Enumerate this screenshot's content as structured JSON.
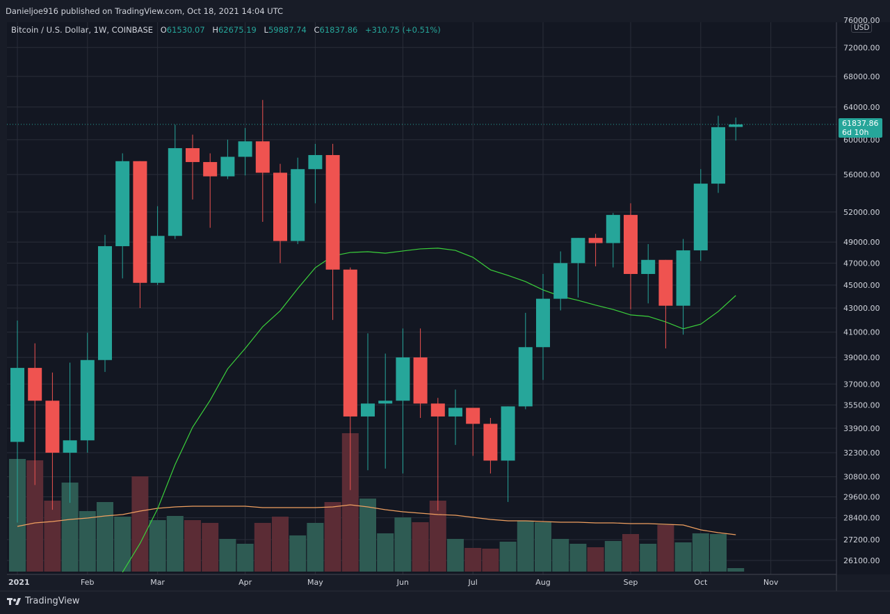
{
  "header": {
    "published": "Danieljoe916 published on TradingView.com, Oct 18, 2021 14:04 UTC"
  },
  "legend": {
    "symbol": "Bitcoin / U.S. Dollar, 1W, COINBASE",
    "o_label": "O",
    "o": "61530.07",
    "h_label": "H",
    "h": "62675.19",
    "l_label": "L",
    "l": "59887.74",
    "c_label": "C",
    "c": "61837.86",
    "change": "+310.75 (+0.51%)"
  },
  "price_axis": {
    "currency": "USD",
    "last_price": "61837.86",
    "countdown": "6d 10h"
  },
  "footer": {
    "brand": "TradingView"
  },
  "colors": {
    "up": "#26a69a",
    "down": "#ef5350",
    "vol_up": "#2e5b53",
    "vol_down": "#5b2c35",
    "ma_price": "#3bd13b",
    "ma_volume": "#f0a060",
    "background": "#131722",
    "grid": "#2a2e39"
  },
  "chart_data": {
    "type": "candlestick",
    "scale": "log",
    "grid": true,
    "ylim": [
      25500,
      77000
    ],
    "y_ticks": [
      "76000.00",
      "72000.00",
      "68000.00",
      "64000.00",
      "60000.00",
      "56000.00",
      "52000.00",
      "49000.00",
      "47000.00",
      "45000.00",
      "43000.00",
      "41000.00",
      "39000.00",
      "37000.00",
      "35500.00",
      "33900.00",
      "32300.00",
      "30800.00",
      "29600.00",
      "28400.00",
      "27200.00",
      "26100.00"
    ],
    "x_ticks": [
      {
        "label": "2021",
        "week": 0
      },
      {
        "label": "Feb",
        "week": 4
      },
      {
        "label": "Mar",
        "week": 8
      },
      {
        "label": "Apr",
        "week": 13
      },
      {
        "label": "May",
        "week": 17
      },
      {
        "label": "Jun",
        "week": 22
      },
      {
        "label": "Jul",
        "week": 26
      },
      {
        "label": "Aug",
        "week": 30
      },
      {
        "label": "Sep",
        "week": 35
      },
      {
        "label": "Oct",
        "week": 39
      },
      {
        "label": "Nov",
        "week": 43
      }
    ],
    "candles": [
      [
        33000,
        41950,
        28130,
        38200
      ],
      [
        38200,
        40100,
        30300,
        35800
      ],
      [
        35800,
        37850,
        28850,
        32300
      ],
      [
        32300,
        38600,
        29250,
        33100
      ],
      [
        33100,
        40950,
        32300,
        38800
      ],
      [
        38800,
        49700,
        37900,
        48600
      ],
      [
        48600,
        58400,
        45600,
        57500
      ],
      [
        57500,
        57500,
        43000,
        45200
      ],
      [
        45200,
        52600,
        45000,
        49600
      ],
      [
        49600,
        61800,
        49300,
        59000
      ],
      [
        59000,
        60600,
        53300,
        57400
      ],
      [
        57400,
        58400,
        50400,
        55800
      ],
      [
        55800,
        60000,
        55500,
        58000
      ],
      [
        58000,
        61400,
        55900,
        59800
      ],
      [
        59800,
        64900,
        51000,
        56200
      ],
      [
        56200,
        57200,
        47000,
        49100
      ],
      [
        49100,
        57900,
        48800,
        56600
      ],
      [
        56600,
        59500,
        52900,
        58200
      ],
      [
        58200,
        59500,
        42000,
        46400
      ],
      [
        46400,
        46600,
        30000,
        34700
      ],
      [
        34700,
        40900,
        31200,
        35600
      ],
      [
        35600,
        39300,
        31300,
        35800
      ],
      [
        35800,
        41300,
        31000,
        39000
      ],
      [
        39000,
        41300,
        34600,
        35600
      ],
      [
        35600,
        36000,
        28800,
        34700
      ],
      [
        34700,
        36600,
        32800,
        35300
      ],
      [
        35300,
        35300,
        32100,
        34200
      ],
      [
        34200,
        34600,
        31000,
        31800
      ],
      [
        31800,
        35400,
        29300,
        35400
      ],
      [
        35400,
        42600,
        35200,
        39800
      ],
      [
        39800,
        46000,
        37300,
        43800
      ],
      [
        43800,
        48100,
        42800,
        47000
      ],
      [
        47000,
        49400,
        43900,
        49400
      ],
      [
        49400,
        49800,
        46700,
        48900
      ],
      [
        48900,
        51900,
        46600,
        51700
      ],
      [
        51700,
        52900,
        42900,
        46000
      ],
      [
        46000,
        48800,
        43400,
        47300
      ],
      [
        47300,
        47300,
        39700,
        43200
      ],
      [
        43200,
        49300,
        40800,
        48200
      ],
      [
        48200,
        56600,
        47200,
        55000
      ],
      [
        55000,
        62900,
        54000,
        61500
      ],
      [
        61530.07,
        62675.19,
        59887.74,
        61837.86
      ]
    ],
    "volume": [
      162,
      160,
      102,
      128,
      87,
      100,
      79,
      137,
      74,
      80,
      74,
      70,
      47,
      40,
      70,
      79,
      52,
      70,
      100,
      199,
      105,
      55,
      78,
      71,
      102,
      47,
      34,
      33,
      43,
      73,
      71,
      47,
      40,
      35,
      44,
      54,
      40,
      67,
      42,
      55,
      54,
      5
    ],
    "price_ma": [
      null,
      null,
      null,
      null,
      null,
      null,
      25500,
      26990,
      28900,
      31550,
      33970,
      35830,
      38130,
      39700,
      41440,
      42770,
      44690,
      46570,
      47670,
      48000,
      48070,
      47930,
      48140,
      48340,
      48410,
      48200,
      47540,
      46380,
      45870,
      45310,
      44570,
      44020,
      43660,
      43250,
      42880,
      42420,
      42300,
      41840,
      41270,
      41650,
      42710,
      44080
    ],
    "volume_ma": [
      65,
      70,
      72,
      75,
      77,
      80,
      82,
      87,
      91,
      93,
      94,
      94,
      94,
      94,
      92,
      92,
      92,
      92,
      93,
      96,
      93,
      89,
      86,
      84,
      82,
      81,
      78,
      75,
      73,
      73,
      72,
      71,
      71,
      70,
      70,
      69,
      69,
      68,
      67,
      60,
      56,
      53
    ]
  }
}
